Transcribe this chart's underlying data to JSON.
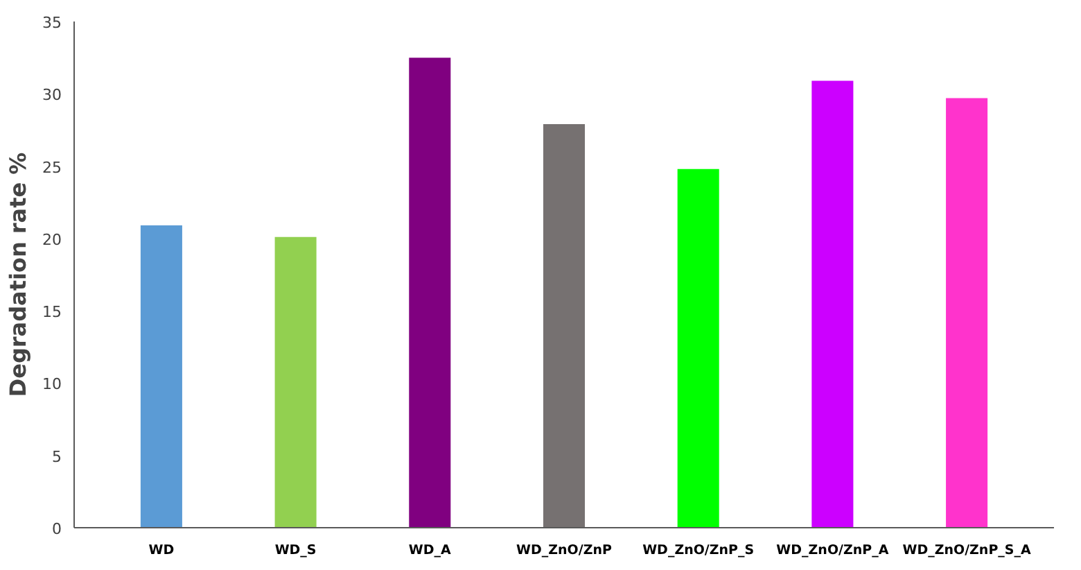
{
  "chart_data": {
    "type": "bar",
    "ylabel": "Degradation rate %",
    "categories": [
      "WD",
      "WD_S",
      "WD_A",
      "WD_ZnO/ZnP",
      "WD_ZnO/ZnP_S",
      "WD_ZnO/ZnP_A",
      "WD_ZnO/ZnP_S_A"
    ],
    "values": [
      20.9,
      20.1,
      32.5,
      27.9,
      24.8,
      30.9,
      29.7
    ],
    "colors": [
      "#5b9bd5",
      "#92d050",
      "#800080",
      "#767171",
      "#00ff00",
      "#cc00ff",
      "#ff33cc"
    ],
    "ylim": [
      0,
      35
    ],
    "yticks": [
      0,
      5,
      10,
      15,
      20,
      25,
      30,
      35
    ],
    "grid": false
  }
}
